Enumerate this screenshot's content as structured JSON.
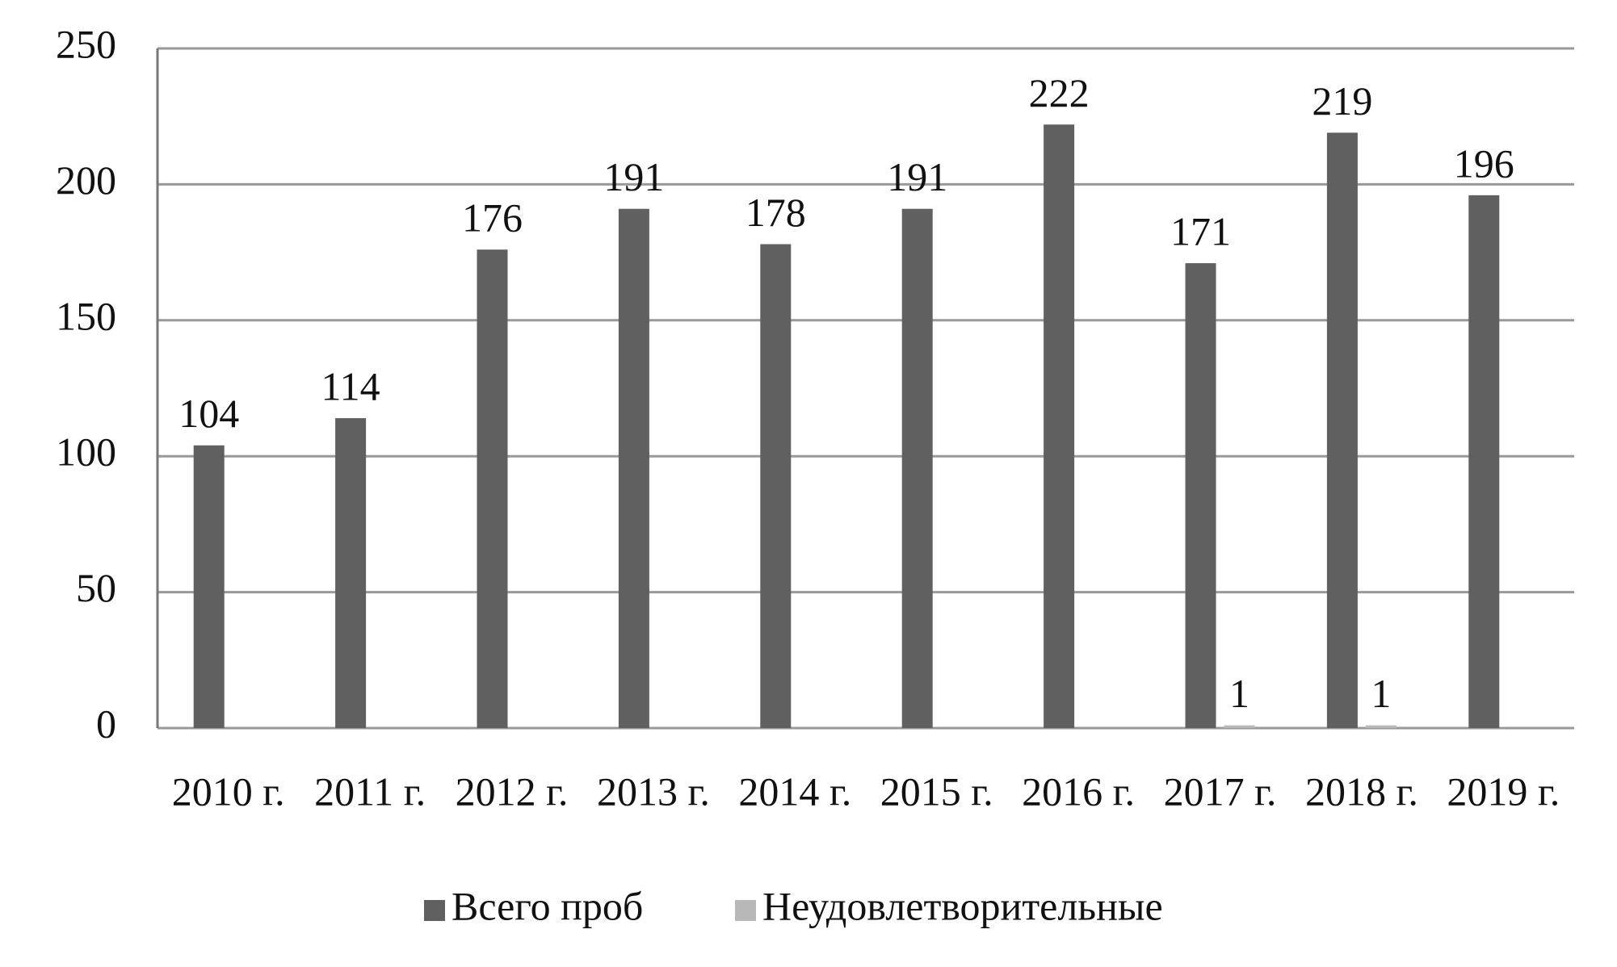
{
  "chart_data": {
    "type": "bar",
    "categories": [
      "2010 г.",
      "2011 г.",
      "2012 г.",
      "2013 г.",
      "2014 г.",
      "2015 г.",
      "2016 г.",
      "2017 г.",
      "2018 г.",
      "2019 г."
    ],
    "series": [
      {
        "name": "Всего проб",
        "color": "#606060",
        "values": [
          104,
          114,
          176,
          191,
          178,
          191,
          222,
          171,
          219,
          196
        ]
      },
      {
        "name": "Неудовлетворительные",
        "color": "#b8b8b8",
        "values": [
          null,
          null,
          null,
          null,
          null,
          null,
          null,
          1,
          1,
          null
        ]
      }
    ],
    "ylim": [
      0,
      250
    ],
    "yticks": [
      0,
      50,
      100,
      150,
      200,
      250
    ],
    "grid": true,
    "legend": "bottom"
  }
}
